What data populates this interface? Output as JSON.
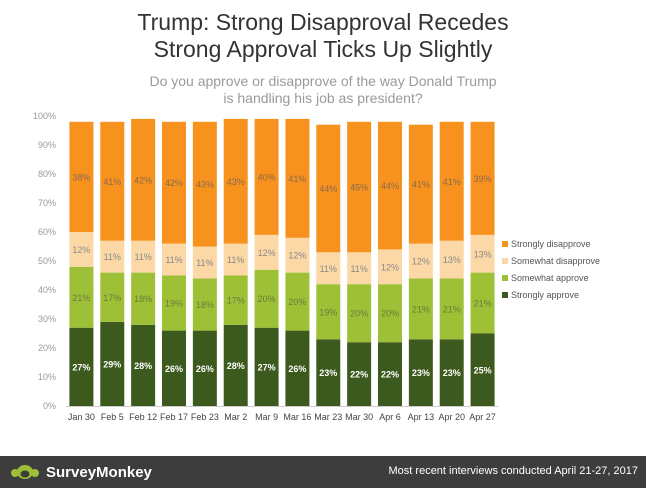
{
  "header": {
    "title_line1": "Trump: Strong Disapproval Recedes",
    "title_line2": "Strong Approval Ticks Up Slightly",
    "subtitle_line1": "Do you approve or disapprove of the way Donald Trump",
    "subtitle_line2": "is handling his job as president?"
  },
  "footer": {
    "brand": "SurveyMonkey",
    "logo_icon": "survey-monkey-logo-icon",
    "note": "Most recent interviews conducted April 21-27, 2017"
  },
  "chart_data": {
    "type": "bar",
    "stacked": true,
    "categories": [
      "Jan 30",
      "Feb 5",
      "Feb 12",
      "Feb 17",
      "Feb 23",
      "Mar 2",
      "Mar 9",
      "Mar 16",
      "Mar 23",
      "Mar 30",
      "Apr 6",
      "Apr 13",
      "Apr 20",
      "Apr 27"
    ],
    "series": [
      {
        "name": "Strongly approve",
        "color": "#3d5a1e",
        "label_color": "#ffffff",
        "values": [
          27,
          29,
          28,
          26,
          26,
          28,
          27,
          26,
          23,
          22,
          22,
          23,
          23,
          25
        ]
      },
      {
        "name": "Somewhat approve",
        "color": "#9ec037",
        "label_color": "#6b7a3a",
        "values": [
          21,
          17,
          18,
          19,
          18,
          17,
          20,
          20,
          19,
          20,
          20,
          21,
          21,
          21
        ]
      },
      {
        "name": "Somewhat disapprove",
        "color": "#fbd8a6",
        "label_color": "#8a8a8a",
        "values": [
          12,
          11,
          11,
          11,
          11,
          11,
          12,
          12,
          11,
          11,
          12,
          12,
          13,
          13
        ]
      },
      {
        "name": "Strongly disapprove",
        "color": "#f7921e",
        "label_color": "#8a6a4a",
        "values": [
          38,
          41,
          42,
          42,
          43,
          43,
          40,
          41,
          44,
          45,
          44,
          41,
          41,
          39
        ]
      }
    ],
    "y_ticks": [
      "0%",
      "10%",
      "20%",
      "30%",
      "40%",
      "50%",
      "60%",
      "70%",
      "80%",
      "90%",
      "100%"
    ],
    "ylim": [
      0,
      100
    ],
    "legend_position": "right"
  }
}
